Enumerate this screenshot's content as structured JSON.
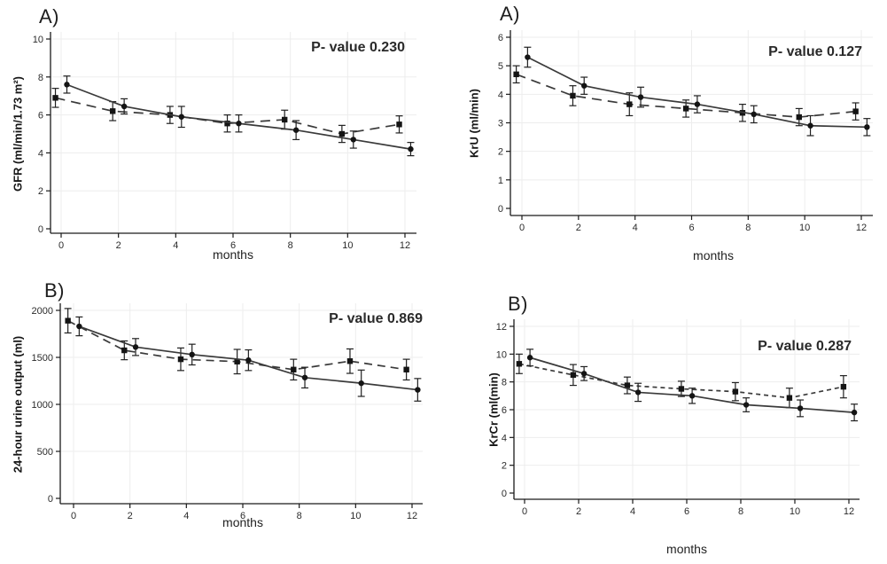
{
  "colors": {
    "line": "#3a3a3a",
    "marker": "#141414",
    "error_bar": "#202020",
    "axis": "#1a1a1a",
    "grid": "#ededed",
    "tick_text": "#2b2b2b"
  },
  "chart_data": [
    {
      "id": "gfr",
      "type": "line",
      "panel_label": "A)",
      "annotation": "P- value 0.230",
      "xlabel": "months",
      "ylabel": "GFR (ml/min/1.73 m²)",
      "xlim": [
        -0.7,
        12.7
      ],
      "ylim": [
        0,
        10
      ],
      "xticks": [
        0,
        2,
        4,
        6,
        8,
        10,
        12
      ],
      "yticks": [
        0,
        2,
        4,
        6,
        8,
        10
      ],
      "grid": true,
      "legend": "none",
      "series": [
        {
          "name": "solid-line-circle-markers",
          "line": "solid",
          "marker": "circle",
          "x": [
            0.2,
            2.2,
            4.2,
            6.2,
            8.2,
            10.2,
            12.2
          ],
          "y": [
            7.6,
            6.45,
            5.9,
            5.55,
            5.2,
            4.7,
            4.2
          ],
          "err": [
            0.45,
            0.4,
            0.55,
            0.45,
            0.5,
            0.45,
            0.35
          ]
        },
        {
          "name": "dashed-line-square-markers",
          "line": "dashed",
          "marker": "square",
          "x": [
            -0.2,
            1.8,
            3.8,
            5.8,
            7.8,
            9.8,
            11.8
          ],
          "y": [
            6.9,
            6.2,
            6.0,
            5.55,
            5.75,
            5.0,
            5.5
          ],
          "err": [
            0.5,
            0.5,
            0.45,
            0.45,
            0.5,
            0.45,
            0.45
          ]
        }
      ]
    },
    {
      "id": "kru",
      "type": "line",
      "panel_label": "A)",
      "annotation": "P- value 0.127",
      "xlabel": "months",
      "ylabel": "KrU (ml/min)",
      "xlim": [
        -0.7,
        12.7
      ],
      "ylim": [
        0,
        6
      ],
      "xticks": [
        0,
        2,
        4,
        6,
        8,
        10,
        12
      ],
      "yticks": [
        0,
        1,
        2,
        3,
        4,
        5,
        6
      ],
      "grid": true,
      "legend": "none",
      "series": [
        {
          "name": "solid-line-circle-markers",
          "line": "solid",
          "marker": "circle",
          "x": [
            0.2,
            2.2,
            4.2,
            6.2,
            8.2,
            10.2,
            12.2
          ],
          "y": [
            5.3,
            4.3,
            3.9,
            3.65,
            3.3,
            2.9,
            2.85
          ],
          "err": [
            0.35,
            0.3,
            0.35,
            0.3,
            0.3,
            0.35,
            0.3
          ]
        },
        {
          "name": "dashed-line-square-markers",
          "line": "dashed",
          "marker": "square",
          "x": [
            -0.2,
            1.8,
            3.8,
            5.8,
            7.8,
            9.8,
            11.8
          ],
          "y": [
            4.7,
            3.95,
            3.65,
            3.5,
            3.35,
            3.2,
            3.4
          ],
          "err": [
            0.3,
            0.35,
            0.4,
            0.3,
            0.3,
            0.3,
            0.3
          ]
        }
      ]
    },
    {
      "id": "urine-output",
      "type": "line",
      "panel_label": "B)",
      "annotation": "P- value 0.869",
      "xlabel": "months",
      "ylabel": "24-hour urine output (ml)",
      "xlim": [
        -0.7,
        12.7
      ],
      "ylim": [
        0,
        2000
      ],
      "xticks": [
        0,
        2,
        4,
        6,
        8,
        10,
        12
      ],
      "yticks": [
        0,
        500,
        1000,
        1500,
        2000
      ],
      "grid": true,
      "legend": "none",
      "series": [
        {
          "name": "solid-line-circle-markers",
          "line": "solid",
          "marker": "circle",
          "x": [
            0.2,
            2.2,
            4.2,
            6.2,
            8.2,
            10.2,
            12.2
          ],
          "y": [
            1830,
            1610,
            1530,
            1470,
            1285,
            1225,
            1155
          ],
          "err": [
            100,
            90,
            110,
            110,
            110,
            140,
            120
          ]
        },
        {
          "name": "dashed-line-square-markers",
          "line": "dashed",
          "marker": "square",
          "x": [
            -0.2,
            1.8,
            3.8,
            5.8,
            7.8,
            9.8,
            11.8
          ],
          "y": [
            1890,
            1575,
            1480,
            1455,
            1370,
            1460,
            1370
          ],
          "err": [
            130,
            100,
            120,
            130,
            110,
            130,
            110
          ]
        }
      ]
    },
    {
      "id": "krcr",
      "type": "line",
      "panel_label": "B)",
      "annotation": "P- value 0.287",
      "xlabel": "months",
      "ylabel": "KrCr (ml(min)",
      "xlim": [
        -0.7,
        12.7
      ],
      "ylim": [
        0,
        12
      ],
      "xticks": [
        0,
        2,
        4,
        6,
        8,
        10,
        12
      ],
      "yticks": [
        0,
        2,
        4,
        6,
        8,
        10,
        12
      ],
      "grid": true,
      "legend": "none",
      "series": [
        {
          "name": "solid-line-circle-markers",
          "line": "solid",
          "marker": "circle",
          "x": [
            0.2,
            2.2,
            4.2,
            6.2,
            8.2,
            10.2,
            12.2
          ],
          "y": [
            9.75,
            8.6,
            7.25,
            7.0,
            6.35,
            6.1,
            5.8
          ],
          "err": [
            0.6,
            0.5,
            0.65,
            0.55,
            0.5,
            0.6,
            0.6
          ]
        },
        {
          "name": "dashed-line-square-markers",
          "line": "dashed",
          "marker": "square",
          "x": [
            -0.2,
            1.8,
            3.8,
            5.8,
            7.8,
            9.8,
            11.8
          ],
          "y": [
            9.3,
            8.5,
            7.75,
            7.5,
            7.3,
            6.85,
            7.65
          ],
          "err": [
            0.7,
            0.75,
            0.6,
            0.55,
            0.65,
            0.7,
            0.8
          ]
        }
      ]
    }
  ]
}
